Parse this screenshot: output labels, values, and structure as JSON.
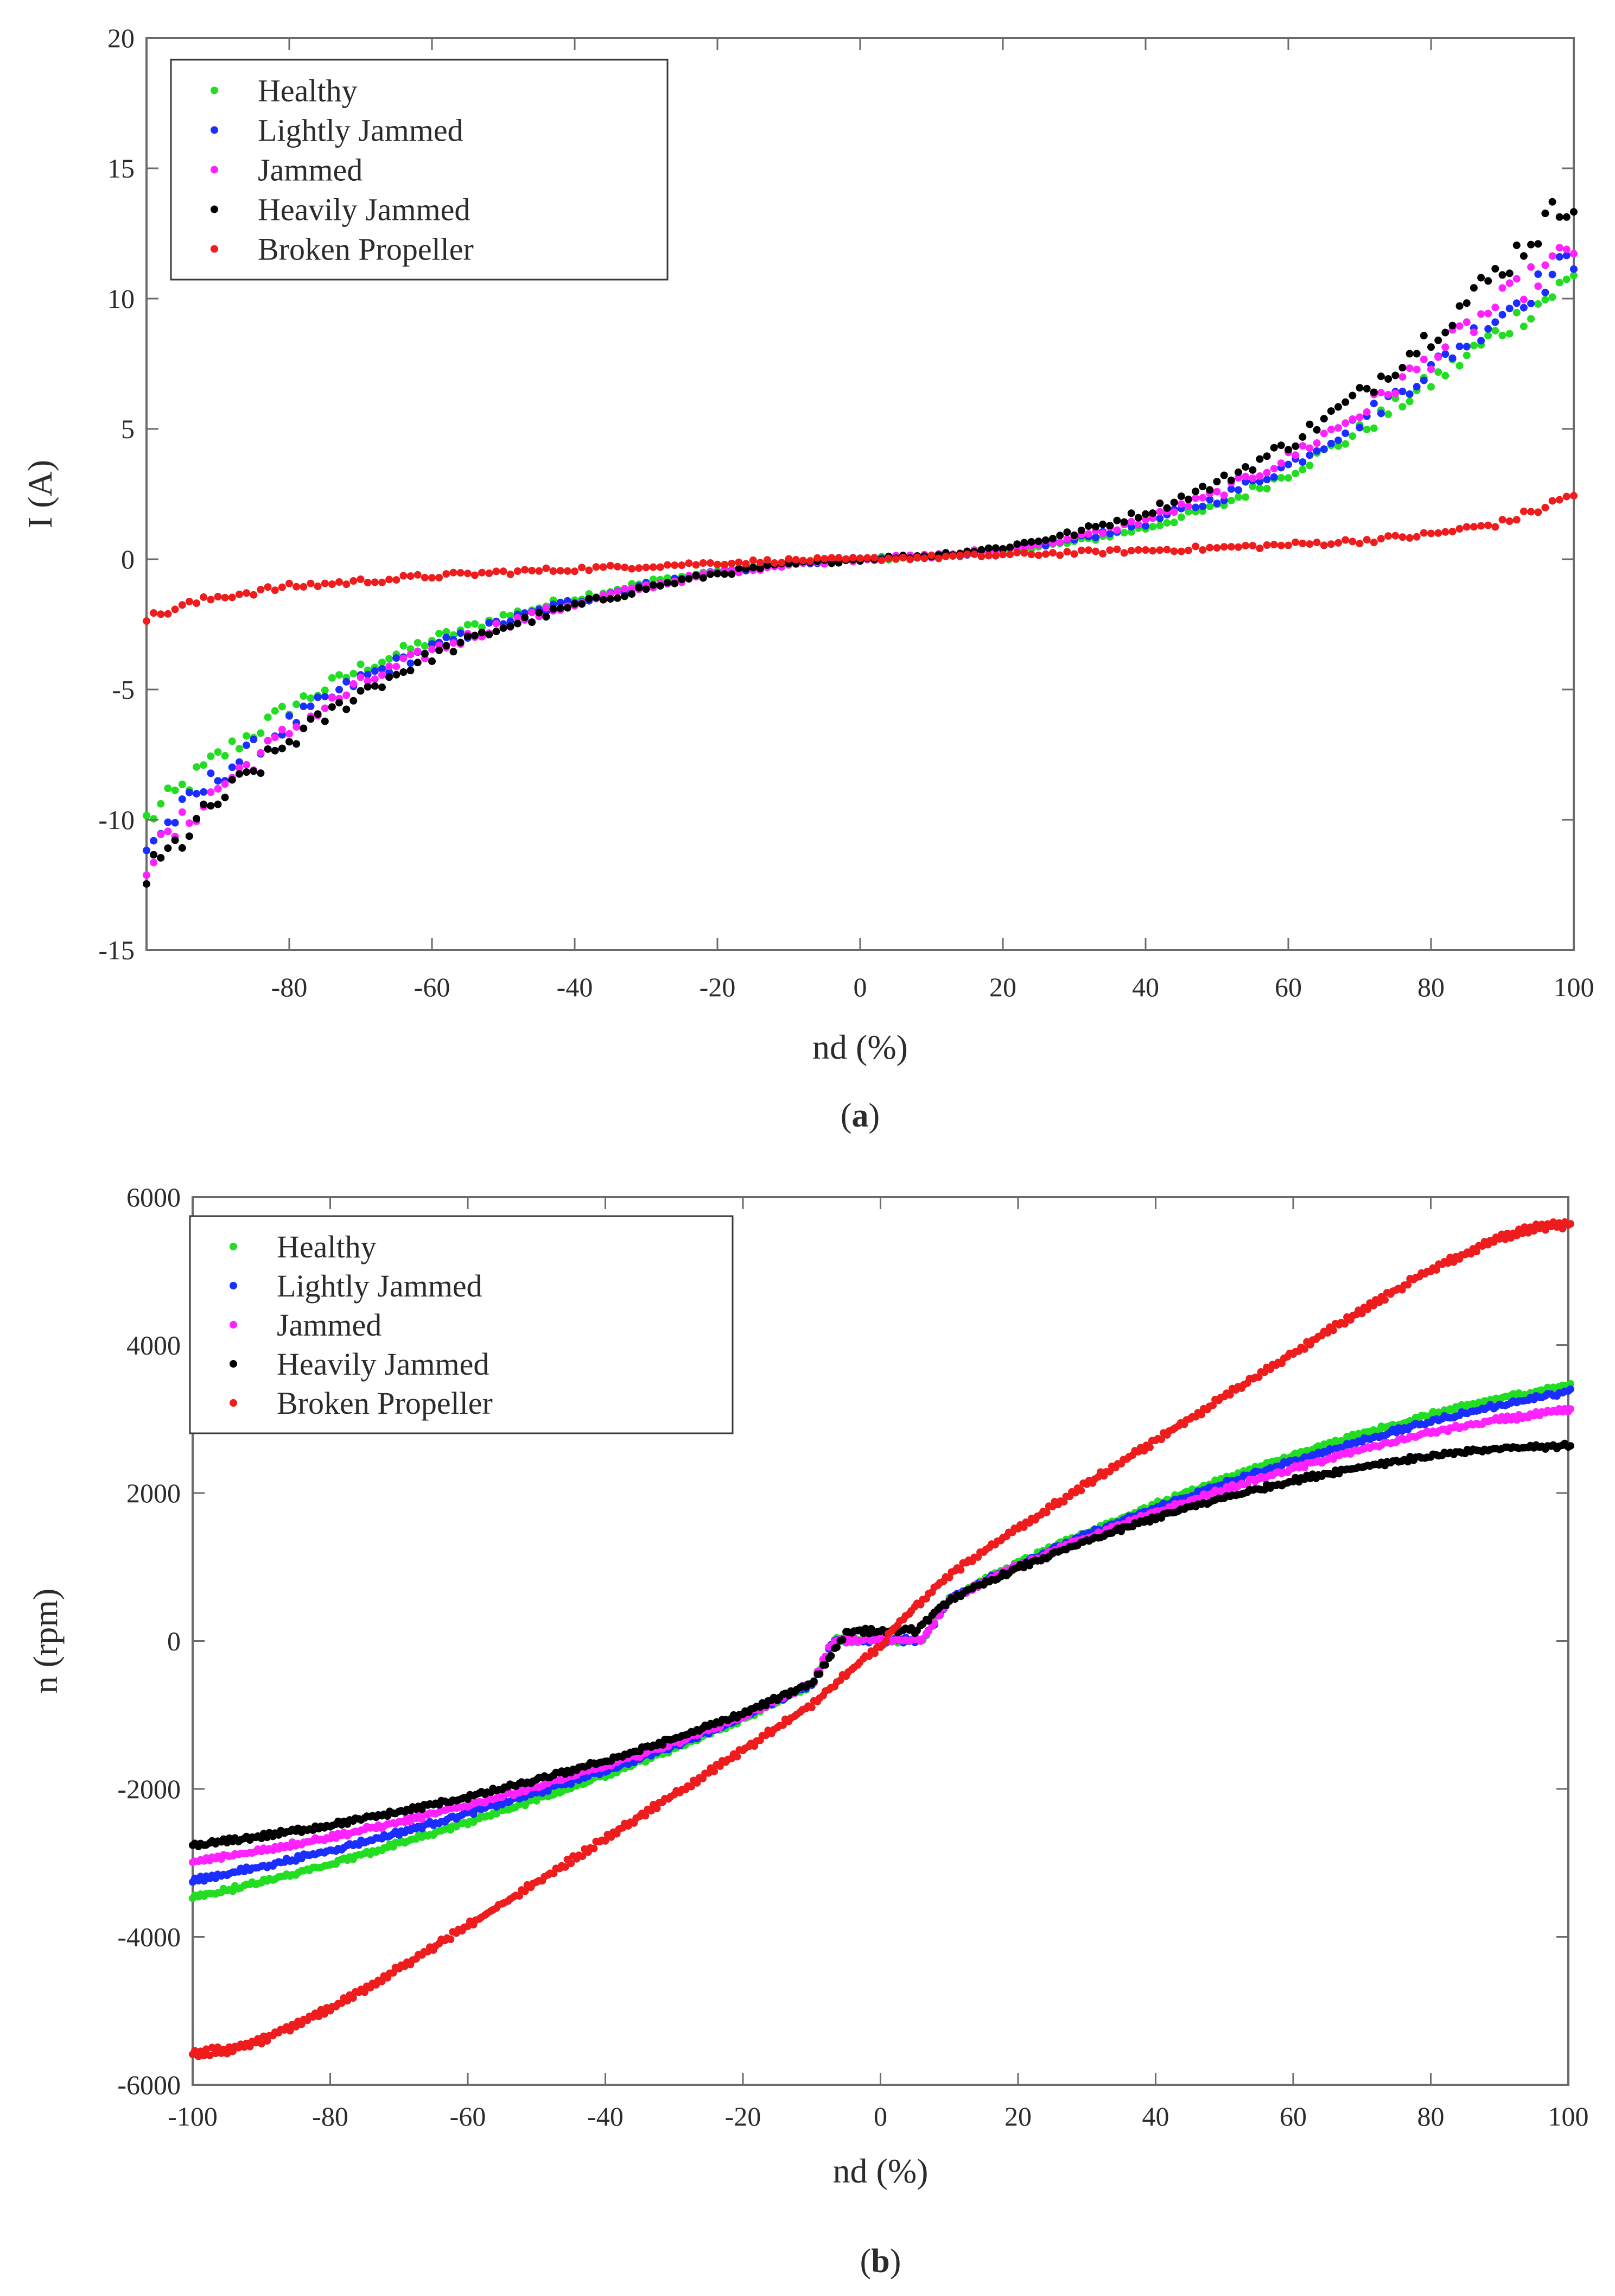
{
  "chart_data": [
    {
      "type": "scatter",
      "panel_label": "(a)",
      "panel_letter": "a",
      "xlabel": "nd (%)",
      "ylabel": "I (A)",
      "xlim": [
        -100,
        100
      ],
      "ylim": [
        -15,
        20
      ],
      "xticks": [
        -80,
        -60,
        -40,
        -20,
        0,
        20,
        40,
        60,
        80,
        100
      ],
      "yticks": [
        -15,
        -10,
        -5,
        0,
        5,
        10,
        15,
        20
      ],
      "legend_position": "top-left",
      "series": [
        {
          "name": "Healthy",
          "color": "#22dd22",
          "points": [
            [
              -100,
              -10.0
            ],
            [
              -90,
              -7.6
            ],
            [
              -80,
              -5.7
            ],
            [
              -70,
              -4.2
            ],
            [
              -60,
              -3.1
            ],
            [
              -50,
              -2.2
            ],
            [
              -40,
              -1.5
            ],
            [
              -30,
              -0.9
            ],
            [
              -20,
              -0.45
            ],
            [
              -10,
              -0.15
            ],
            [
              0,
              0.0
            ],
            [
              10,
              0.1
            ],
            [
              20,
              0.3
            ],
            [
              30,
              0.65
            ],
            [
              40,
              1.2
            ],
            [
              50,
              2.0
            ],
            [
              60,
              3.3
            ],
            [
              70,
              4.9
            ],
            [
              80,
              6.8
            ],
            [
              90,
              8.8
            ],
            [
              100,
              10.8
            ]
          ]
        },
        {
          "name": "Lightly Jammed",
          "color": "#1a2eff",
          "points": [
            [
              -100,
              -11.0
            ],
            [
              -90,
              -8.3
            ],
            [
              -80,
              -6.3
            ],
            [
              -70,
              -4.6
            ],
            [
              -60,
              -3.4
            ],
            [
              -50,
              -2.4
            ],
            [
              -40,
              -1.6
            ],
            [
              -30,
              -1.0
            ],
            [
              -20,
              -0.5
            ],
            [
              -10,
              -0.18
            ],
            [
              0,
              0.0
            ],
            [
              10,
              0.12
            ],
            [
              20,
              0.35
            ],
            [
              30,
              0.75
            ],
            [
              40,
              1.4
            ],
            [
              50,
              2.3
            ],
            [
              60,
              3.6
            ],
            [
              70,
              5.3
            ],
            [
              80,
              7.3
            ],
            [
              90,
              9.5
            ],
            [
              100,
              11.5
            ]
          ]
        },
        {
          "name": "Jammed",
          "color": "#ff22ff",
          "points": [
            [
              -100,
              -11.6
            ],
            [
              -90,
              -8.8
            ],
            [
              -80,
              -6.6
            ],
            [
              -70,
              -4.8
            ],
            [
              -60,
              -3.5
            ],
            [
              -50,
              -2.5
            ],
            [
              -40,
              -1.7
            ],
            [
              -30,
              -1.05
            ],
            [
              -20,
              -0.52
            ],
            [
              -10,
              -0.2
            ],
            [
              0,
              0.0
            ],
            [
              10,
              0.13
            ],
            [
              20,
              0.38
            ],
            [
              30,
              0.8
            ],
            [
              40,
              1.5
            ],
            [
              50,
              2.5
            ],
            [
              60,
              3.9
            ],
            [
              70,
              5.6
            ],
            [
              80,
              7.7
            ],
            [
              90,
              9.9
            ],
            [
              100,
              11.9
            ]
          ]
        },
        {
          "name": "Heavily Jammed",
          "color": "#000000",
          "points": [
            [
              -100,
              -12.2
            ],
            [
              -90,
              -9.3
            ],
            [
              -80,
              -7.0
            ],
            [
              -70,
              -5.1
            ],
            [
              -60,
              -3.7
            ],
            [
              -50,
              -2.6
            ],
            [
              -40,
              -1.8
            ],
            [
              -30,
              -1.1
            ],
            [
              -20,
              -0.55
            ],
            [
              -10,
              -0.2
            ],
            [
              0,
              0.0
            ],
            [
              10,
              0.15
            ],
            [
              20,
              0.45
            ],
            [
              30,
              1.0
            ],
            [
              40,
              1.8
            ],
            [
              50,
              2.9
            ],
            [
              60,
              4.4
            ],
            [
              70,
              6.3
            ],
            [
              80,
              8.6
            ],
            [
              90,
              11.2
            ],
            [
              100,
              14.0
            ]
          ]
        },
        {
          "name": "Broken Propeller",
          "color": "#ee1c1c",
          "points": [
            [
              -100,
              -2.3
            ],
            [
              -95,
              -1.8
            ],
            [
              -90,
              -1.45
            ],
            [
              -80,
              -1.05
            ],
            [
              -70,
              -0.85
            ],
            [
              -60,
              -0.65
            ],
            [
              -50,
              -0.5
            ],
            [
              -40,
              -0.38
            ],
            [
              -30,
              -0.26
            ],
            [
              -20,
              -0.15
            ],
            [
              -10,
              -0.05
            ],
            [
              0,
              0.0
            ],
            [
              10,
              0.08
            ],
            [
              20,
              0.16
            ],
            [
              30,
              0.25
            ],
            [
              40,
              0.34
            ],
            [
              50,
              0.43
            ],
            [
              60,
              0.55
            ],
            [
              70,
              0.7
            ],
            [
              80,
              0.95
            ],
            [
              90,
              1.4
            ],
            [
              95,
              1.9
            ],
            [
              100,
              2.5
            ]
          ]
        }
      ]
    },
    {
      "type": "scatter",
      "panel_label": "(b)",
      "panel_letter": "b",
      "xlabel": "nd (%)",
      "ylabel": "n (rpm)",
      "xlim": [
        -100,
        100
      ],
      "ylim": [
        -6000,
        6000
      ],
      "xticks": [
        -100,
        -80,
        -60,
        -40,
        -20,
        0,
        20,
        40,
        60,
        80,
        100
      ],
      "yticks": [
        -6000,
        -4000,
        -2000,
        0,
        2000,
        4000,
        6000
      ],
      "legend_position": "top-left",
      "series": [
        {
          "name": "Healthy",
          "color": "#22dd22",
          "points": [
            [
              -100,
              -3480
            ],
            [
              -90,
              -3270
            ],
            [
              -80,
              -3020
            ],
            [
              -70,
              -2750
            ],
            [
              -60,
              -2460
            ],
            [
              -50,
              -2150
            ],
            [
              -40,
              -1820
            ],
            [
              -30,
              -1460
            ],
            [
              -20,
              -1060
            ],
            [
              -10,
              -600
            ],
            [
              -7,
              0
            ],
            [
              0,
              0
            ],
            [
              6,
              0
            ],
            [
              10,
              580
            ],
            [
              20,
              1050
            ],
            [
              30,
              1460
            ],
            [
              40,
              1840
            ],
            [
              50,
              2180
            ],
            [
              60,
              2500
            ],
            [
              70,
              2790
            ],
            [
              80,
              3050
            ],
            [
              90,
              3270
            ],
            [
              100,
              3450
            ]
          ]
        },
        {
          "name": "Lightly Jammed",
          "color": "#1a2eff",
          "points": [
            [
              -100,
              -3250
            ],
            [
              -90,
              -3060
            ],
            [
              -80,
              -2840
            ],
            [
              -70,
              -2600
            ],
            [
              -60,
              -2340
            ],
            [
              -50,
              -2060
            ],
            [
              -40,
              -1760
            ],
            [
              -30,
              -1420
            ],
            [
              -20,
              -1040
            ],
            [
              -10,
              -590
            ],
            [
              -7,
              0
            ],
            [
              0,
              0
            ],
            [
              6,
              0
            ],
            [
              10,
              570
            ],
            [
              20,
              1030
            ],
            [
              30,
              1430
            ],
            [
              40,
              1790
            ],
            [
              50,
              2120
            ],
            [
              60,
              2420
            ],
            [
              70,
              2700
            ],
            [
              80,
              2960
            ],
            [
              90,
              3180
            ],
            [
              100,
              3360
            ]
          ]
        },
        {
          "name": "Jammed",
          "color": "#ff22ff",
          "points": [
            [
              -100,
              -3000
            ],
            [
              -90,
              -2840
            ],
            [
              -80,
              -2660
            ],
            [
              -70,
              -2460
            ],
            [
              -60,
              -2230
            ],
            [
              -50,
              -1980
            ],
            [
              -40,
              -1700
            ],
            [
              -30,
              -1390
            ],
            [
              -20,
              -1020
            ],
            [
              -10,
              -580
            ],
            [
              -7,
              0
            ],
            [
              0,
              0
            ],
            [
              6,
              0
            ],
            [
              10,
              560
            ],
            [
              20,
              1010
            ],
            [
              30,
              1390
            ],
            [
              40,
              1730
            ],
            [
              50,
              2040
            ],
            [
              60,
              2320
            ],
            [
              70,
              2580
            ],
            [
              80,
              2810
            ],
            [
              90,
              2980
            ],
            [
              100,
              3110
            ]
          ]
        },
        {
          "name": "Heavily Jammed",
          "color": "#000000",
          "points": [
            [
              -100,
              -2780
            ],
            [
              -90,
              -2650
            ],
            [
              -80,
              -2500
            ],
            [
              -70,
              -2320
            ],
            [
              -60,
              -2120
            ],
            [
              -50,
              -1890
            ],
            [
              -40,
              -1630
            ],
            [
              -30,
              -1330
            ],
            [
              -20,
              -990
            ],
            [
              -10,
              -570
            ],
            [
              -5,
              120
            ],
            [
              0,
              120
            ],
            [
              5,
              130
            ],
            [
              10,
              550
            ],
            [
              20,
              980
            ],
            [
              30,
              1340
            ],
            [
              40,
              1660
            ],
            [
              50,
              1930
            ],
            [
              60,
              2160
            ],
            [
              70,
              2350
            ],
            [
              80,
              2490
            ],
            [
              90,
              2590
            ],
            [
              100,
              2630
            ]
          ]
        },
        {
          "name": "Broken Propeller",
          "color": "#ee1c1c",
          "points": [
            [
              -100,
              -5600
            ],
            [
              -95,
              -5560
            ],
            [
              -90,
              -5420
            ],
            [
              -80,
              -5000
            ],
            [
              -70,
              -4450
            ],
            [
              -60,
              -3870
            ],
            [
              -50,
              -3280
            ],
            [
              -40,
              -2690
            ],
            [
              -30,
              -2100
            ],
            [
              -20,
              -1500
            ],
            [
              -10,
              -880
            ],
            [
              -2,
              -220
            ],
            [
              0,
              -100
            ],
            [
              2,
              180
            ],
            [
              10,
              880
            ],
            [
              20,
              1500
            ],
            [
              30,
              2100
            ],
            [
              40,
              2690
            ],
            [
              50,
              3280
            ],
            [
              60,
              3870
            ],
            [
              70,
              4450
            ],
            [
              80,
              5000
            ],
            [
              90,
              5420
            ],
            [
              95,
              5560
            ],
            [
              100,
              5600
            ]
          ]
        }
      ]
    }
  ]
}
